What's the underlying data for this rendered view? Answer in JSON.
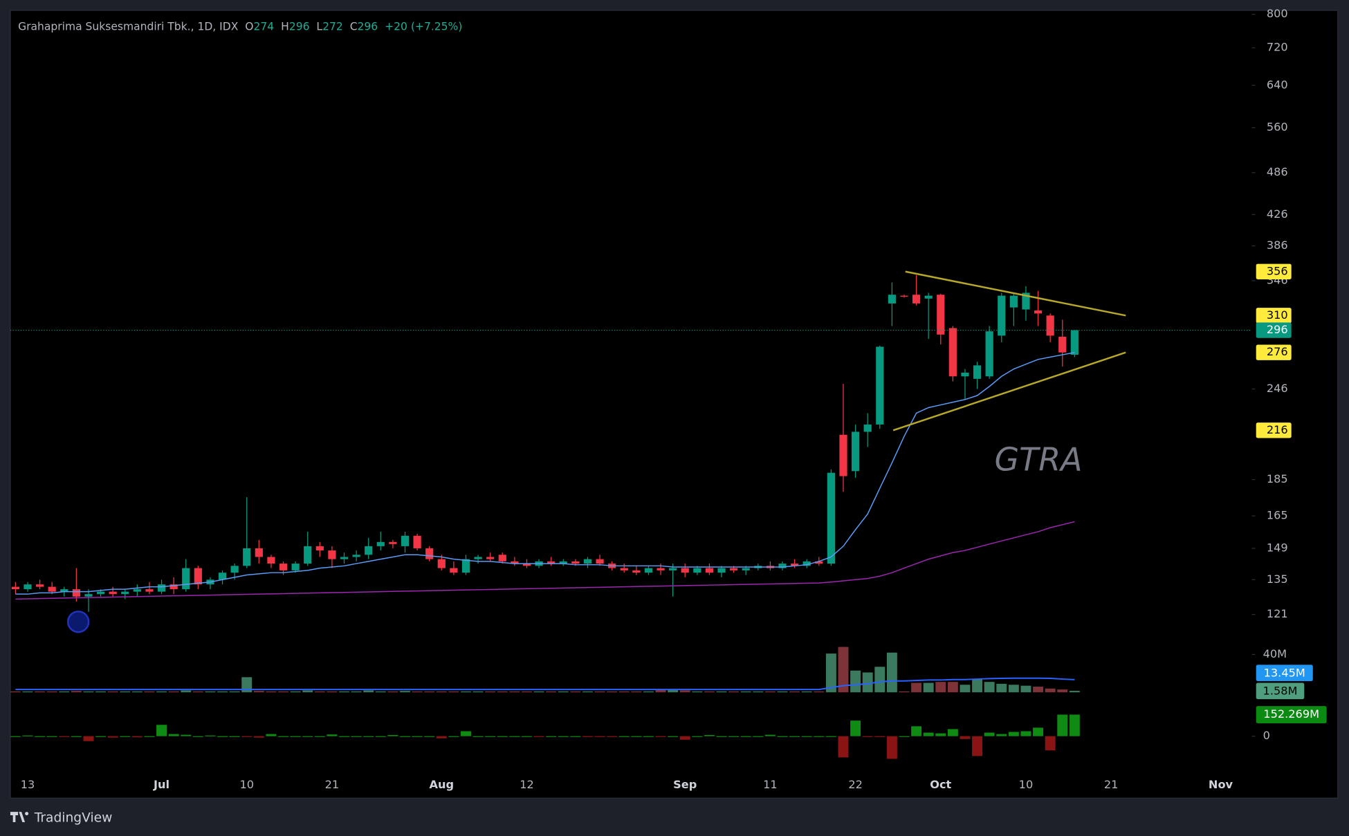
{
  "chart_data": {
    "type": "candlestick",
    "title": "Grahaprima Suksesmandiri Tbk., 1D, IDX",
    "ohlc_labels": [
      "O",
      "H",
      "L",
      "C"
    ],
    "change": "+20 (+7.25%)",
    "watermark": "GTRA",
    "brand": "TradingView",
    "log_scale": true,
    "colors": {
      "up": "#089981",
      "down": "#f23645"
    },
    "categories": [
      null,
      "13",
      null,
      null,
      null,
      null,
      null,
      null,
      null,
      null,
      null,
      null,
      "Jul",
      null,
      null,
      null,
      null,
      null,
      null,
      "10",
      null,
      null,
      null,
      null,
      null,
      null,
      "21",
      null,
      null,
      null,
      null,
      null,
      null,
      null,
      null,
      "Aug",
      null,
      null,
      null,
      null,
      null,
      null,
      "12",
      null,
      null,
      null,
      null,
      null,
      null,
      null,
      null,
      null,
      null,
      null,
      null,
      "Sep",
      null,
      null,
      null,
      null,
      null,
      null,
      "11",
      null,
      null,
      null,
      null,
      null,
      null,
      "22",
      null,
      null,
      null,
      null,
      null,
      null,
      "Oct",
      null,
      null,
      null,
      null,
      null,
      null,
      "10",
      null,
      null,
      null,
      null,
      null,
      null,
      "21",
      null,
      null,
      null,
      null,
      null,
      null,
      null,
      null,
      "Nov",
      null
    ],
    "open": [
      132,
      131,
      133,
      132,
      130,
      131,
      128,
      129,
      130,
      129,
      130,
      131,
      130,
      133,
      131,
      140,
      133,
      135,
      138,
      141,
      149,
      145,
      142,
      139,
      142,
      150,
      148,
      144,
      145,
      146,
      150,
      152,
      150,
      155,
      149,
      144,
      140,
      138,
      144,
      145,
      146,
      143,
      142,
      141,
      143,
      142,
      143,
      142,
      144,
      142,
      140,
      139,
      138,
      140,
      139,
      140,
      138,
      140,
      138,
      140,
      139,
      140,
      141,
      140,
      142,
      141,
      143,
      142,
      213,
      190,
      215,
      220,
      322,
      330,
      331,
      327,
      331,
      298,
      256,
      254,
      256,
      291,
      318,
      316,
      315,
      310,
      290,
      274,
      null,
      null,
      null,
      null,
      null,
      null,
      null,
      null,
      null,
      null,
      null,
      null,
      null
    ],
    "high": [
      134,
      134,
      135,
      134,
      132,
      140,
      131,
      131,
      132,
      131,
      133,
      134,
      135,
      136,
      144,
      141,
      136,
      139,
      142,
      175,
      153,
      146,
      143,
      143,
      157,
      152,
      150,
      147,
      148,
      154,
      157,
      153,
      157,
      156,
      150,
      146,
      143,
      146,
      146,
      147,
      147,
      145,
      144,
      144,
      145,
      144,
      144,
      145,
      146,
      143,
      142,
      141,
      141,
      142,
      142,
      142,
      141,
      142,
      141,
      141,
      141,
      142,
      143,
      143,
      144,
      144,
      145,
      191,
      250,
      220,
      228,
      282,
      344,
      331,
      352,
      333,
      332,
      300,
      262,
      268,
      300,
      333,
      333,
      340,
      335,
      312,
      306,
      296,
      null,
      null,
      null,
      null,
      null,
      null,
      null,
      null,
      null,
      null,
      null,
      null,
      null
    ],
    "low": [
      129,
      130,
      131,
      129,
      128,
      126,
      122,
      128,
      128,
      127,
      128,
      129,
      129,
      129,
      130,
      131,
      131,
      133,
      135,
      140,
      142,
      140,
      137,
      138,
      141,
      145,
      140,
      142,
      143,
      144,
      148,
      149,
      147,
      148,
      143,
      139,
      137,
      137,
      142,
      143,
      142,
      141,
      140,
      140,
      141,
      141,
      141,
      140,
      141,
      139,
      138,
      137,
      137,
      137,
      128,
      136,
      137,
      137,
      136,
      138,
      137,
      139,
      139,
      139,
      140,
      140,
      141,
      141,
      178,
      186,
      205,
      217,
      300,
      328,
      320,
      288,
      283,
      252,
      238,
      246,
      254,
      285,
      300,
      305,
      300,
      285,
      264,
      272,
      null,
      null,
      null,
      null,
      null,
      null,
      null,
      null,
      null,
      null,
      null,
      null,
      null
    ],
    "close": [
      131,
      133,
      132,
      130,
      131,
      128,
      129,
      130,
      129,
      130,
      131,
      130,
      133,
      131,
      140,
      133,
      135,
      138,
      141,
      149,
      145,
      142,
      139,
      142,
      150,
      148,
      144,
      145,
      146,
      150,
      152,
      151,
      155,
      149,
      144,
      140,
      138,
      144,
      145,
      144,
      143,
      142,
      141,
      143,
      142,
      143,
      142,
      144,
      142,
      140,
      139,
      138,
      140,
      139,
      140,
      138,
      140,
      138,
      140,
      139,
      140,
      141,
      140,
      142,
      141,
      143,
      142,
      189,
      187,
      215,
      220,
      281,
      331,
      329,
      322,
      330,
      292,
      256,
      259,
      265,
      295,
      330,
      330,
      333,
      312,
      291,
      276,
      296,
      null,
      null,
      null,
      null,
      null,
      null,
      null,
      null,
      null,
      null,
      null,
      null,
      null
    ],
    "ylim": [
      112,
      810
    ],
    "yticks": [
      800,
      720,
      640,
      560,
      486,
      426,
      386,
      346,
      246,
      185,
      165,
      149,
      135,
      121
    ],
    "moving_averages": [
      {
        "color": "#5b9cf6",
        "values": [
          129,
          129,
          129.5,
          129.5,
          130,
          130,
          130,
          130.5,
          131,
          131,
          131.5,
          132,
          132,
          132.5,
          133,
          133.5,
          134,
          135,
          136,
          137,
          137.5,
          138,
          138,
          138.5,
          139,
          140,
          140.5,
          141,
          142,
          143,
          144,
          145,
          146,
          146,
          145.5,
          145,
          144,
          143.5,
          143,
          143,
          142.5,
          142,
          142,
          142,
          142,
          142,
          141.5,
          141.5,
          141.5,
          141,
          141,
          141,
          141,
          141,
          140.5,
          140.5,
          140.5,
          140.5,
          140.5,
          140.5,
          140.5,
          140.5,
          140.5,
          140.5,
          141,
          141.5,
          143,
          145,
          150,
          158,
          166,
          180,
          195,
          212,
          228,
          232,
          234,
          236,
          238,
          241,
          248,
          256,
          262,
          266,
          270,
          272,
          274,
          276,
          null,
          null,
          null,
          null,
          null,
          null,
          null,
          null,
          null,
          null,
          null,
          null,
          null
        ]
      },
      {
        "color": "#9c27b0",
        "values": [
          127,
          127.1,
          127.2,
          127.3,
          127.4,
          127.5,
          127.6,
          127.7,
          127.8,
          127.9,
          128,
          128.1,
          128.2,
          128.3,
          128.4,
          128.5,
          128.6,
          128.7,
          128.8,
          128.9,
          129,
          129.1,
          129.2,
          129.3,
          129.4,
          129.5,
          129.6,
          129.7,
          129.8,
          129.9,
          130,
          130.1,
          130.2,
          130.3,
          130.4,
          130.5,
          130.6,
          130.7,
          130.8,
          130.9,
          131,
          131.1,
          131.2,
          131.3,
          131.4,
          131.5,
          131.6,
          131.7,
          131.8,
          131.9,
          132,
          132.1,
          132.2,
          132.3,
          132.4,
          132.5,
          132.6,
          132.7,
          132.8,
          132.9,
          133,
          133.1,
          133.2,
          133.3,
          133.4,
          133.5,
          133.6,
          134,
          134.5,
          135,
          135.5,
          136.5,
          138,
          140,
          142,
          144,
          145.5,
          147,
          148,
          149.5,
          151,
          152.5,
          154,
          155.5,
          157,
          159,
          160.5,
          162,
          null,
          null,
          null,
          null,
          null,
          null,
          null,
          null,
          null,
          null,
          null,
          null,
          null
        ]
      }
    ],
    "trendlines": [
      {
        "color": "#b5a82a",
        "start": {
          "index": 73.1,
          "value": 356
        },
        "end": {
          "index": 91.2,
          "value": 310
        }
      },
      {
        "color": "#b5a82a",
        "start": {
          "index": 72.1,
          "value": 216
        },
        "end": {
          "index": 91.2,
          "value": 276
        }
      }
    ],
    "volume": {
      "colors": {
        "up": "#3b7a5e",
        "down": "#7d3338"
      },
      "values": [
        1,
        1,
        1,
        1,
        1,
        1.5,
        1,
        1,
        1,
        1,
        1,
        1,
        1,
        1,
        2,
        1,
        1,
        1,
        1,
        16,
        1.5,
        1,
        1,
        1,
        2,
        1,
        1,
        1,
        1,
        2,
        1,
        1,
        1.5,
        1,
        1,
        1,
        1,
        1,
        1,
        1,
        1,
        1,
        1,
        1,
        1,
        1,
        1,
        1,
        1,
        1,
        1,
        1,
        1,
        3,
        3,
        2,
        1,
        1,
        1,
        1,
        1,
        1,
        1,
        1,
        1,
        1,
        1,
        41,
        48,
        23,
        21,
        27,
        42,
        1,
        10,
        10,
        11,
        11,
        8,
        14,
        11,
        9,
        8,
        7,
        6,
        4,
        3,
        1.58,
        null,
        null,
        null,
        null,
        null,
        null,
        null,
        null,
        null,
        null,
        null,
        null,
        null
      ],
      "last_label": "1.58M",
      "ylim": [
        0,
        40
      ],
      "yticks": [
        {
          "value": 40,
          "label": "40M"
        }
      ],
      "ma": {
        "color": "#2962ff",
        "last_label": "13.45M",
        "values": [
          3,
          3,
          3,
          3,
          3,
          3,
          3,
          3,
          3,
          3,
          3,
          3,
          3,
          3,
          3,
          3,
          3,
          3,
          3,
          3,
          3,
          3,
          3,
          3,
          3,
          3,
          3,
          3,
          3,
          3,
          3,
          3,
          3,
          3,
          3,
          3,
          3,
          3,
          3,
          3,
          3,
          3,
          3,
          3,
          3,
          3,
          3,
          3,
          3,
          3,
          3,
          3,
          3,
          3,
          3,
          3,
          3,
          3,
          3,
          3,
          3,
          3,
          3,
          3,
          3,
          3,
          3,
          5,
          7,
          8,
          9,
          11,
          12,
          12,
          12.5,
          13,
          13,
          13.5,
          13.5,
          14,
          14.5,
          14.8,
          15,
          15,
          15,
          14.8,
          14,
          13.45,
          null,
          null,
          null,
          null,
          null,
          null,
          null,
          null,
          null,
          null,
          null,
          null,
          null
        ]
      }
    },
    "flow": {
      "colors": {
        "up": "#0f8a12",
        "down": "#8a1414"
      },
      "values": [
        0,
        5,
        0,
        0,
        -5,
        0,
        -35,
        0,
        -10,
        0,
        -8,
        0,
        80,
        15,
        10,
        0,
        5,
        0,
        0,
        -5,
        -10,
        15,
        0,
        0,
        0,
        0,
        12,
        0,
        0,
        0,
        0,
        8,
        0,
        0,
        0,
        -15,
        0,
        35,
        0,
        0,
        0,
        0,
        0,
        -5,
        0,
        0,
        0,
        -3,
        -3,
        -3,
        0,
        0,
        0,
        -5,
        0,
        -25,
        0,
        8,
        0,
        0,
        0,
        0,
        10,
        0,
        0,
        0,
        0,
        0,
        -150,
        110,
        -5,
        -5,
        -160,
        0,
        70,
        25,
        20,
        50,
        -20,
        -140,
        25,
        15,
        30,
        35,
        60,
        -100,
        152,
        152.269,
        null,
        null,
        null,
        null,
        null,
        null,
        null,
        null,
        null,
        null,
        null,
        null,
        null
      ],
      "last_label": "152.269M",
      "ylim": [
        -170,
        170
      ],
      "yticks": [
        0
      ]
    }
  }
}
